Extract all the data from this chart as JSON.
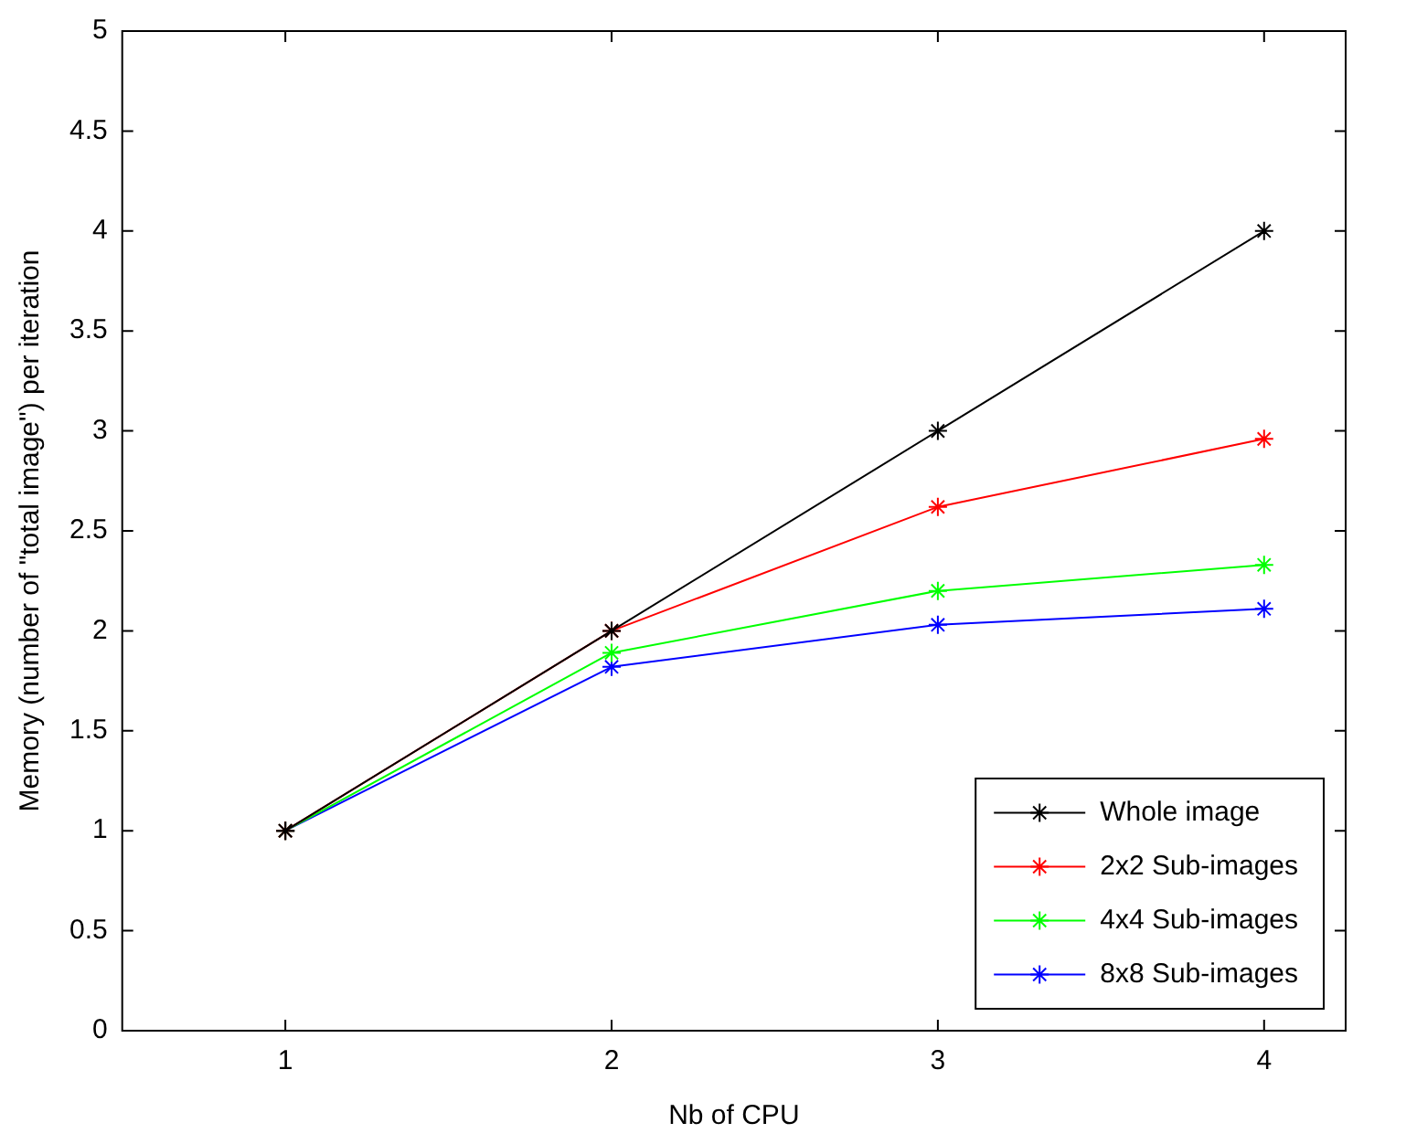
{
  "chart_data": {
    "type": "line",
    "xlabel": "Nb of CPU",
    "ylabel": "Memory (number of \"total image\") per iteration",
    "x": [
      1,
      2,
      3,
      4
    ],
    "series": [
      {
        "name": "Whole image",
        "color": "#000000",
        "values": [
          1,
          2,
          3,
          4
        ]
      },
      {
        "name": "2x2 Sub-images",
        "color": "#ff0000",
        "values": [
          1,
          2,
          2.62,
          2.96
        ]
      },
      {
        "name": "4x4 Sub-images",
        "color": "#00ff00",
        "values": [
          1,
          1.89,
          2.2,
          2.33
        ]
      },
      {
        "name": "8x8 Sub-images",
        "color": "#0000ff",
        "values": [
          1,
          1.82,
          2.03,
          2.11
        ]
      }
    ],
    "xlim": [
      0.5,
      4.25
    ],
    "xticks": [
      1,
      2,
      3,
      4
    ],
    "ylim": [
      0,
      5
    ],
    "yticks": [
      0,
      0.5,
      1,
      1.5,
      2,
      2.5,
      3,
      3.5,
      4,
      4.5,
      5
    ],
    "grid": false,
    "legend": "bottom right",
    "marker": "cross",
    "line_style": "solid"
  }
}
